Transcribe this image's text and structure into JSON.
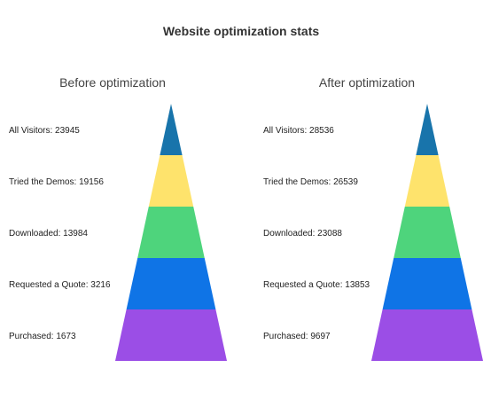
{
  "chart_data": {
    "type": "pyramid",
    "title": "Website optimization stats",
    "charts": [
      {
        "subtitle": "Before optimization",
        "stages": [
          {
            "label": "All Visitors",
            "value": 23945,
            "text": "All Visitors: 23945",
            "color": "#1874ab"
          },
          {
            "label": "Tried the Demos",
            "value": 19156,
            "text": "Tried the Demos: 19156",
            "color": "#fee36c"
          },
          {
            "label": "Downloaded",
            "value": 13984,
            "text": "Downloaded: 13984",
            "color": "#4ed47c"
          },
          {
            "label": "Requested a Quote",
            "value": 3216,
            "text": "Requested a Quote: 3216",
            "color": "#0f74e6"
          },
          {
            "label": "Purchased",
            "value": 1673,
            "text": "Purchased: 1673",
            "color": "#9b4ee6"
          }
        ]
      },
      {
        "subtitle": "After optimization",
        "stages": [
          {
            "label": "All Visitors",
            "value": 28536,
            "text": "All Visitors: 28536",
            "color": "#1874ab"
          },
          {
            "label": "Tried the Demos",
            "value": 26539,
            "text": "Tried the Demos: 26539",
            "color": "#fee36c"
          },
          {
            "label": "Downloaded",
            "value": 23088,
            "text": "Downloaded: 23088",
            "color": "#4ed47c"
          },
          {
            "label": "Requested a Quote",
            "value": 13853,
            "text": "Requested a Quote: 13853",
            "color": "#0f74e6"
          },
          {
            "label": "Purchased",
            "value": 9697,
            "text": "Purchased: 9697",
            "color": "#9b4ee6"
          }
        ]
      }
    ]
  }
}
